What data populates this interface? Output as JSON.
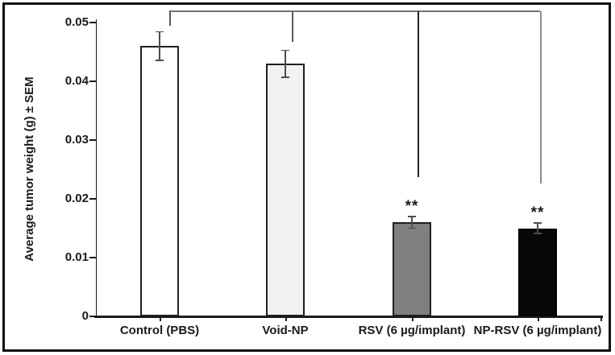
{
  "figure": {
    "background": "#ffffff",
    "border_color": "#111111"
  },
  "chart_data": {
    "type": "bar",
    "title": "",
    "xlabel": "",
    "ylabel": "Average tumor weight (g) ± SEM",
    "ylim": [
      0,
      0.05
    ],
    "yticks": [
      0,
      0.01,
      0.02,
      0.03,
      0.04,
      0.05
    ],
    "ytick_labels": [
      "0",
      "0.01",
      "0.02",
      "0.03",
      "0.04",
      "0.05"
    ],
    "grid": false,
    "legend": "none",
    "categories": [
      "Control (PBS)",
      "Void-NP",
      "RSV (6 µg/implant)",
      "NP-RSV (6 µg/implant)"
    ],
    "values": [
      0.046,
      0.043,
      0.016,
      0.015
    ],
    "errors_sem": [
      0.0024,
      0.0023,
      0.001,
      0.0009
    ],
    "significance": [
      null,
      null,
      "**",
      "**"
    ],
    "bar_styles": [
      {
        "fill": "#ffffff",
        "border": "#1f1f1f"
      },
      {
        "fill": "#f2f2f2",
        "border": "#1f1f1f"
      },
      {
        "fill": "#7f7f7f",
        "border": "#1f1f1f"
      },
      {
        "fill": "#080808",
        "border": "#000000"
      }
    ],
    "error_bar_color": "#4d4d4d",
    "axis_color": "#1a1a1a",
    "bracket_color": "#737373",
    "comparison_brackets": [
      {
        "from": "Control (PBS)",
        "to": "RSV (6 µg/implant)"
      },
      {
        "from": "Void-NP",
        "to": "NP-RSV (6 µg/implant)"
      }
    ]
  }
}
